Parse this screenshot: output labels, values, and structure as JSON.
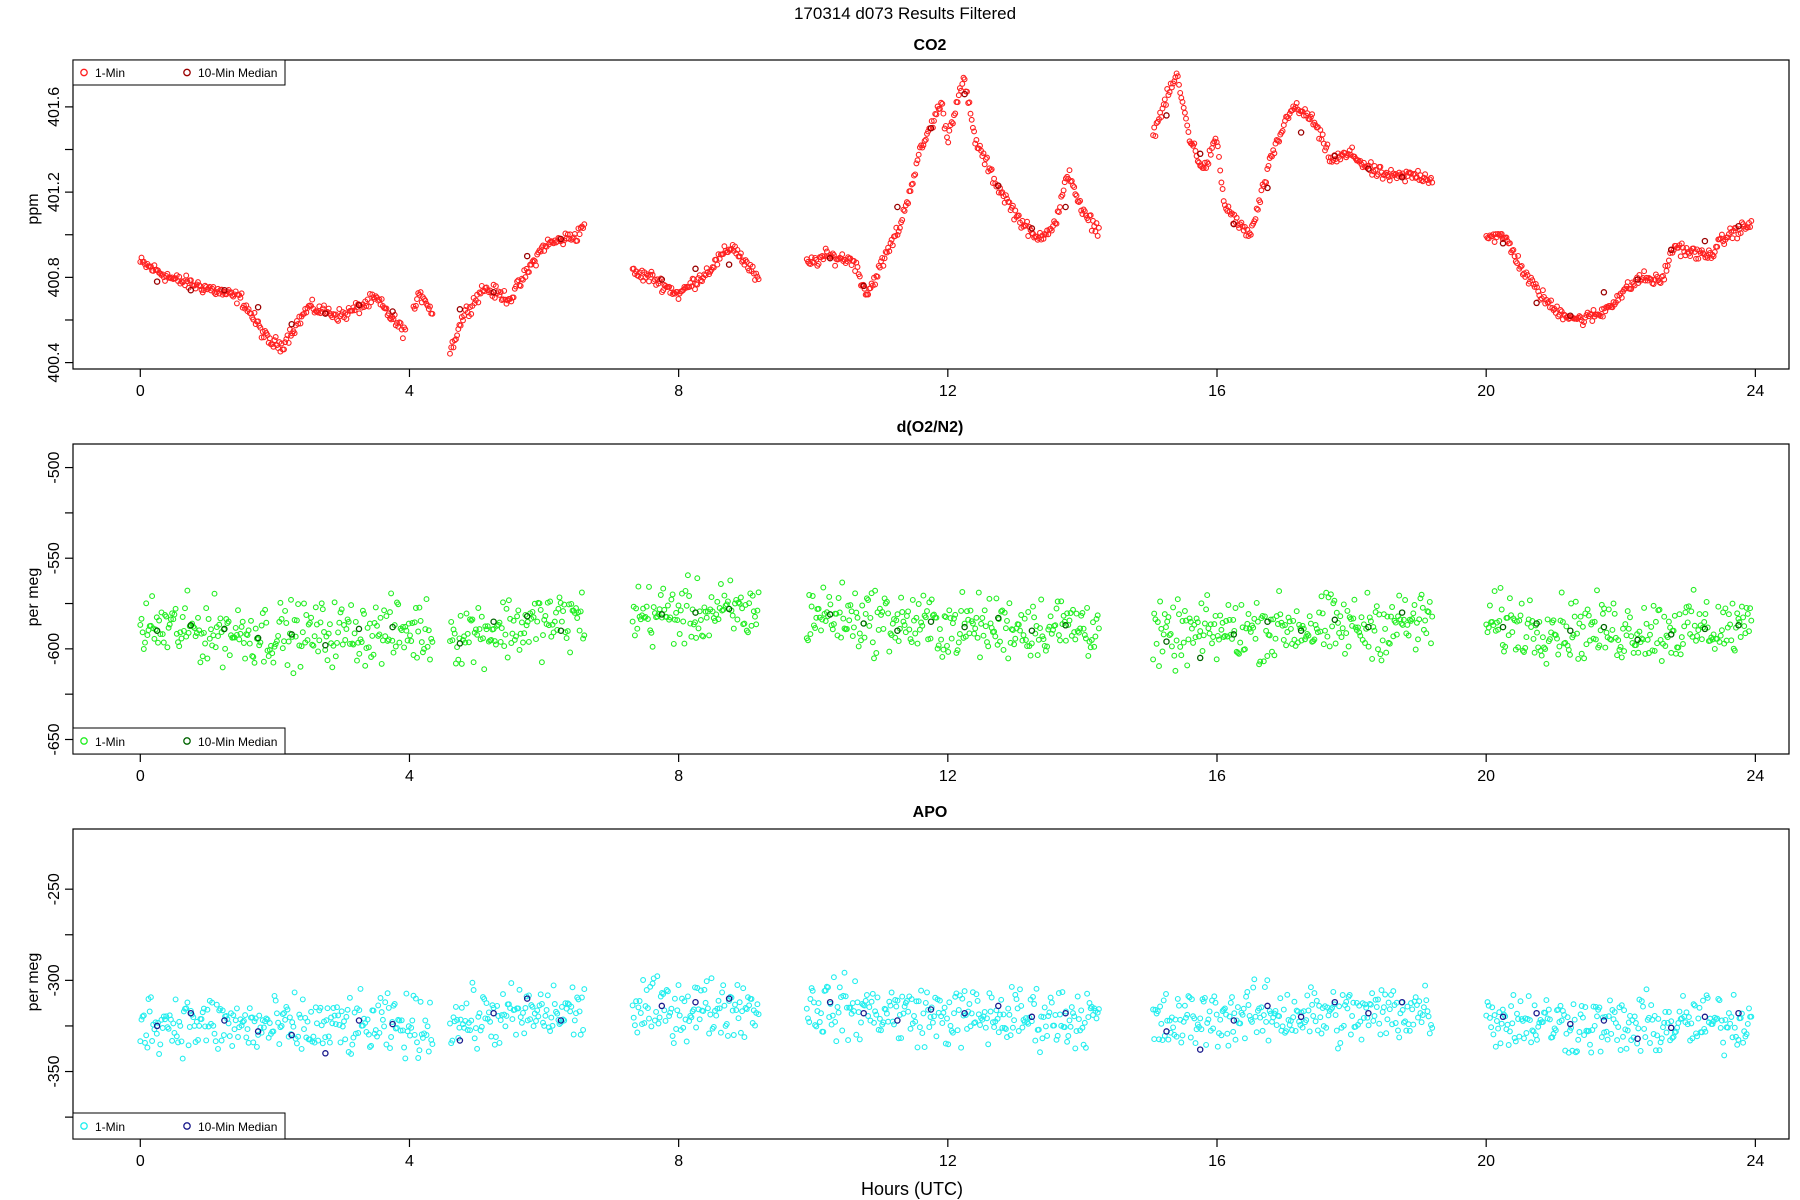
{
  "figure": {
    "suptitle": "170314   d073   Results Filtered",
    "xlabel": "Hours (UTC)"
  },
  "chart_data": [
    {
      "type": "scatter",
      "title": "CO2",
      "xlabel": "",
      "ylabel": "ppm",
      "xlim": [
        -1,
        24.5
      ],
      "ylim": [
        400.37,
        401.82
      ],
      "x_ticks": [
        0,
        4,
        8,
        12,
        16,
        20,
        24
      ],
      "y_ticks": [
        400.4,
        400.8,
        401.2,
        401.6
      ],
      "y_minor_ticks": [
        400.6,
        401.0,
        401.4
      ],
      "y_tick_labels": [
        "400.4",
        "400.8",
        "401.2",
        "401.6"
      ],
      "legend": {
        "placement": "top-left",
        "entries": [
          "1-Min",
          "10-Min Median"
        ]
      },
      "colors": {
        "one_min": "#ff2020",
        "median": "#9a0000"
      },
      "gaps": [
        [
          3.95,
          4.05
        ],
        [
          4.35,
          4.6
        ],
        [
          6.6,
          7.3
        ],
        [
          9.2,
          9.9
        ],
        [
          14.25,
          15.05
        ],
        [
          19.2,
          20.0
        ]
      ],
      "series": [
        {
          "name": "1-Min",
          "x": [
            0.0,
            0.5,
            1.0,
            1.5,
            1.9,
            2.1,
            2.5,
            3.0,
            3.5,
            3.9,
            4.0,
            4.1,
            4.2,
            4.3,
            4.6,
            4.8,
            5.1,
            5.5,
            6.0,
            6.5,
            6.6,
            7.3,
            7.6,
            8.0,
            8.4,
            8.8,
            9.2,
            9.9,
            10.2,
            10.6,
            10.8,
            11.0,
            11.3,
            11.6,
            11.9,
            12.0,
            12.15,
            12.25,
            12.4,
            12.7,
            13.0,
            13.3,
            13.6,
            13.8,
            14.0,
            14.25,
            15.05,
            15.2,
            15.4,
            15.6,
            15.8,
            16.0,
            16.1,
            16.3,
            16.5,
            16.8,
            17.1,
            17.4,
            17.7,
            18.0,
            18.3,
            18.6,
            19.0,
            19.2,
            20.0,
            20.3,
            20.6,
            21.0,
            21.4,
            21.7,
            22.0,
            22.3,
            22.6,
            22.8,
            23.0,
            23.3,
            23.6,
            23.95
          ],
          "y": [
            400.87,
            400.79,
            400.75,
            400.7,
            400.5,
            400.48,
            400.66,
            400.62,
            400.7,
            400.55,
            400.58,
            400.68,
            400.72,
            400.66,
            400.45,
            400.62,
            400.75,
            400.7,
            400.95,
            401.0,
            401.06,
            400.82,
            400.8,
            400.72,
            400.82,
            400.95,
            400.78,
            400.86,
            400.9,
            400.88,
            400.72,
            400.85,
            401.05,
            401.4,
            401.62,
            401.45,
            401.65,
            401.72,
            401.45,
            401.25,
            401.1,
            400.98,
            401.05,
            401.3,
            401.1,
            401.02,
            401.47,
            401.6,
            401.75,
            401.45,
            401.3,
            401.45,
            401.15,
            401.05,
            401.0,
            401.35,
            401.6,
            401.55,
            401.35,
            401.38,
            401.3,
            401.27,
            401.28,
            401.26,
            401.0,
            400.98,
            400.8,
            400.65,
            400.6,
            400.63,
            400.72,
            400.8,
            400.78,
            400.95,
            400.92,
            400.9,
            401.0,
            401.05
          ],
          "spread": 0.03
        },
        {
          "name": "10-Min Median",
          "x": [
            0.25,
            0.75,
            1.25,
            1.75,
            2.25,
            2.75,
            3.25,
            3.75,
            4.75,
            5.25,
            5.75,
            6.25,
            7.75,
            8.25,
            8.75,
            10.25,
            10.75,
            11.25,
            11.75,
            12.25,
            12.75,
            13.25,
            13.75,
            15.25,
            15.75,
            16.25,
            16.75,
            17.25,
            17.75,
            18.25,
            18.75,
            20.25,
            20.75,
            21.25,
            21.75,
            22.25,
            22.75,
            23.25,
            23.75
          ],
          "y": [
            400.78,
            400.74,
            400.74,
            400.66,
            400.58,
            400.63,
            400.67,
            400.64,
            400.65,
            400.73,
            400.9,
            400.98,
            400.79,
            400.84,
            400.86,
            400.89,
            400.76,
            401.13,
            401.5,
            401.66,
            401.23,
            401.03,
            401.13,
            401.56,
            401.38,
            401.05,
            401.22,
            401.48,
            401.37,
            401.31,
            401.27,
            400.96,
            400.68,
            400.62,
            400.73,
            400.79,
            400.93,
            400.97,
            401.04
          ]
        }
      ]
    },
    {
      "type": "scatter",
      "title": "d(O2/N2)",
      "xlabel": "",
      "ylabel": "per meg",
      "xlim": [
        -1,
        24.5
      ],
      "ylim": [
        -658,
        -487
      ],
      "x_ticks": [
        0,
        4,
        8,
        12,
        16,
        20,
        24
      ],
      "y_ticks": [
        -650,
        -600,
        -550,
        -500
      ],
      "y_minor_ticks": [
        -625,
        -575,
        -525
      ],
      "y_tick_labels": [
        "-650",
        "-600",
        "-550",
        "-500"
      ],
      "legend": {
        "placement": "bottom-left",
        "entries": [
          "1-Min",
          "10-Min Median"
        ]
      },
      "colors": {
        "one_min": "#22ee22",
        "median": "#006400"
      },
      "gaps": [
        [
          4.35,
          4.6
        ],
        [
          6.6,
          7.3
        ],
        [
          9.2,
          9.9
        ],
        [
          14.25,
          15.05
        ],
        [
          19.2,
          20.0
        ]
      ],
      "series": [
        {
          "name": "1-Min",
          "x": [
            0.0,
            2.0,
            4.35,
            4.6,
            6.6,
            7.3,
            9.2,
            9.9,
            12.0,
            14.25,
            15.05,
            16.0,
            17.0,
            18.0,
            19.2,
            20.0,
            22.0,
            23.95
          ],
          "y": [
            -588,
            -592,
            -590,
            -592,
            -583,
            -581,
            -580,
            -580,
            -588,
            -587,
            -595,
            -590,
            -588,
            -588,
            -585,
            -586,
            -590,
            -588
          ],
          "spread": 17
        },
        {
          "name": "10-Min Median",
          "x": [
            0.25,
            0.75,
            1.25,
            1.75,
            2.25,
            2.75,
            3.25,
            3.75,
            4.75,
            5.25,
            5.75,
            6.25,
            7.75,
            8.25,
            8.75,
            10.25,
            10.75,
            11.25,
            11.75,
            12.25,
            12.75,
            13.25,
            13.75,
            15.25,
            15.75,
            16.25,
            16.75,
            17.25,
            17.75,
            18.25,
            18.75,
            20.25,
            20.75,
            21.25,
            21.75,
            22.25,
            22.75,
            23.25,
            23.75
          ],
          "y": [
            -590,
            -587,
            -589,
            -594,
            -592,
            -598,
            -589,
            -588,
            -597,
            -585,
            -582,
            -590,
            -581,
            -580,
            -578,
            -581,
            -586,
            -590,
            -585,
            -588,
            -583,
            -590,
            -587,
            -596,
            -605,
            -592,
            -585,
            -590,
            -584,
            -588,
            -580,
            -588,
            -586,
            -590,
            -588,
            -595,
            -592,
            -589,
            -587
          ]
        }
      ]
    },
    {
      "type": "scatter",
      "title": "APO",
      "xlabel": "Hours (UTC)",
      "ylabel": "per meg",
      "xlim": [
        -1,
        24.5
      ],
      "ylim": [
        -387,
        -217
      ],
      "x_ticks": [
        0,
        4,
        8,
        12,
        16,
        20,
        24
      ],
      "y_ticks": [
        -350,
        -300,
        -250
      ],
      "y_minor_ticks": [
        -375,
        -325,
        -275
      ],
      "y_tick_labels": [
        "-350",
        "-300",
        "-250"
      ],
      "legend": {
        "placement": "bottom-left",
        "entries": [
          "1-Min",
          "10-Min Median"
        ]
      },
      "colors": {
        "one_min": "#22eeee",
        "median": "#1a1a8c"
      },
      "gaps": [
        [
          4.35,
          4.6
        ],
        [
          6.6,
          7.3
        ],
        [
          9.2,
          9.9
        ],
        [
          14.25,
          15.05
        ],
        [
          19.2,
          20.0
        ]
      ],
      "series": [
        {
          "name": "1-Min",
          "x": [
            0.0,
            2.0,
            4.35,
            4.6,
            6.6,
            7.3,
            9.2,
            9.9,
            12.0,
            14.25,
            15.05,
            16.0,
            17.0,
            18.0,
            19.2,
            20.0,
            22.0,
            23.95
          ],
          "y": [
            -322,
            -326,
            -325,
            -322,
            -317,
            -316,
            -314,
            -314,
            -320,
            -320,
            -325,
            -320,
            -318,
            -320,
            -315,
            -320,
            -326,
            -322
          ],
          "spread": 16
        },
        {
          "name": "10-Min Median",
          "x": [
            0.25,
            0.75,
            1.25,
            1.75,
            2.25,
            2.75,
            3.25,
            3.75,
            4.75,
            5.25,
            5.75,
            6.25,
            7.75,
            8.25,
            8.75,
            10.25,
            10.75,
            11.25,
            11.75,
            12.25,
            12.75,
            13.25,
            13.75,
            15.25,
            15.75,
            16.25,
            16.75,
            17.25,
            17.75,
            18.25,
            18.75,
            20.25,
            20.75,
            21.25,
            21.75,
            22.25,
            22.75,
            23.25,
            23.75
          ],
          "y": [
            -325,
            -318,
            -322,
            -328,
            -330,
            -340,
            -322,
            -324,
            -333,
            -318,
            -310,
            -322,
            -314,
            -312,
            -310,
            -312,
            -318,
            -322,
            -316,
            -318,
            -314,
            -320,
            -318,
            -328,
            -338,
            -322,
            -314,
            -320,
            -312,
            -318,
            -312,
            -320,
            -318,
            -324,
            -322,
            -332,
            -326,
            -320,
            -318
          ]
        }
      ]
    }
  ]
}
